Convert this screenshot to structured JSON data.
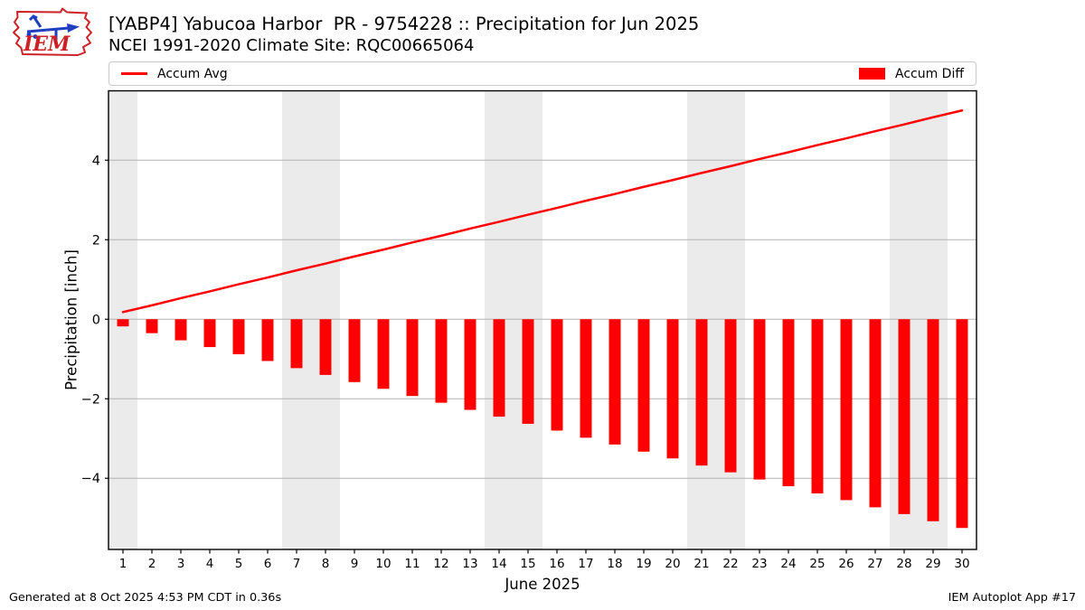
{
  "header": {
    "title": "[YABP4] Yabucoa Harbor  PR - 9754228 :: Precipitation for Jun 2025",
    "subtitle": "NCEI 1991-2020 Climate Site: RQC00665064",
    "logo_text": "IEM"
  },
  "legend": {
    "line_label": "Accum Avg",
    "bar_label": "Accum Diff"
  },
  "footer": {
    "generated": "Generated at 8 Oct 2025 4:53 PM CDT in 0.36s",
    "app": "IEM Autoplot App #17"
  },
  "chart_data": {
    "type": "bar",
    "title": "[YABP4] Yabucoa Harbor  PR - 9754228 :: Precipitation for Jun 2025",
    "subtitle": "NCEI 1991-2020 Climate Site: RQC00665064",
    "xlabel": "June 2025",
    "ylabel": "Precipitation [inch]",
    "x": [
      1,
      2,
      3,
      4,
      5,
      6,
      7,
      8,
      9,
      10,
      11,
      12,
      13,
      14,
      15,
      16,
      17,
      18,
      19,
      20,
      21,
      22,
      23,
      24,
      25,
      26,
      27,
      28,
      29,
      30
    ],
    "series": [
      {
        "name": "Accum Avg",
        "type": "line",
        "color": "#ff0000",
        "values": [
          0.18,
          0.35,
          0.53,
          0.7,
          0.88,
          1.05,
          1.23,
          1.4,
          1.58,
          1.75,
          1.93,
          2.1,
          2.28,
          2.45,
          2.63,
          2.8,
          2.98,
          3.15,
          3.33,
          3.5,
          3.68,
          3.85,
          4.03,
          4.2,
          4.38,
          4.55,
          4.73,
          4.9,
          5.08,
          5.25
        ]
      },
      {
        "name": "Accum Diff",
        "type": "bar",
        "color": "#ff0000",
        "values": [
          -0.18,
          -0.35,
          -0.53,
          -0.7,
          -0.88,
          -1.05,
          -1.23,
          -1.4,
          -1.58,
          -1.75,
          -1.93,
          -2.1,
          -2.28,
          -2.45,
          -2.63,
          -2.8,
          -2.98,
          -3.15,
          -3.33,
          -3.5,
          -3.68,
          -3.85,
          -4.03,
          -4.2,
          -4.38,
          -4.55,
          -4.73,
          -4.9,
          -5.08,
          -5.25
        ]
      }
    ],
    "xlim": [
      0.5,
      30.5
    ],
    "ylim": [
      -5.79,
      5.745
    ],
    "yticks": [
      -4,
      -2,
      0,
      2,
      4
    ],
    "grid": true,
    "grid_color": "#b4b4b4",
    "weekend_bands": [
      [
        0.5,
        1.5
      ],
      [
        6.5,
        8.5
      ],
      [
        13.5,
        15.5
      ],
      [
        20.5,
        22.5
      ],
      [
        27.5,
        29.5
      ]
    ],
    "band_color": "#ebebeb",
    "legend_position": "top"
  }
}
